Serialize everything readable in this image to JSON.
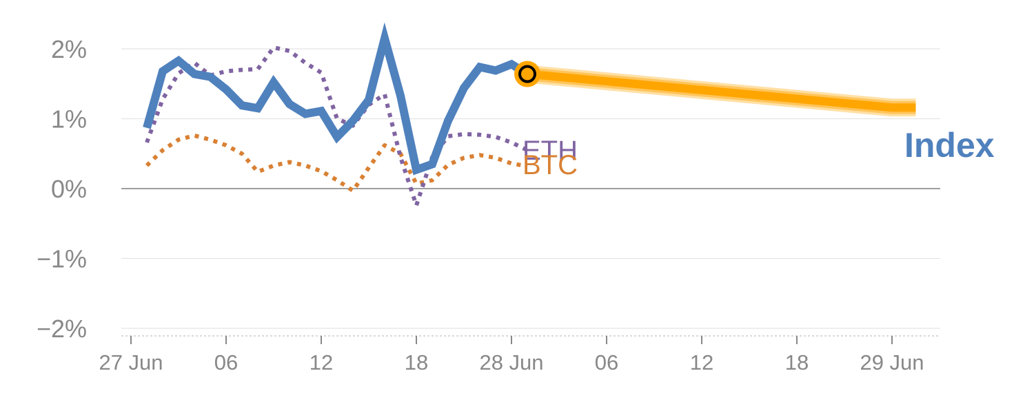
{
  "chart_data": {
    "type": "line",
    "title": "",
    "xlabel": "",
    "ylabel": "",
    "x_ticks": [
      "27 Jun",
      "06",
      "12",
      "18",
      "28 Jun",
      "06",
      "12",
      "18",
      "29 Jun"
    ],
    "y_ticks": [
      "2%",
      "1%",
      "0%",
      "−1%",
      "−2%"
    ],
    "ylim": [
      -2,
      2
    ],
    "xlim": [
      "2024-06-27T00:00",
      "2024-06-29T02:00"
    ],
    "grid": true,
    "series": [
      {
        "name": "Index",
        "color": "#4f81bd",
        "style": "solid",
        "x": [
          "2024-06-27T01:00",
          "2024-06-27T02:00",
          "2024-06-27T03:00",
          "2024-06-27T04:00",
          "2024-06-27T05:00",
          "2024-06-27T06:00",
          "2024-06-27T07:00",
          "2024-06-27T08:00",
          "2024-06-27T09:00",
          "2024-06-27T10:00",
          "2024-06-27T11:00",
          "2024-06-27T12:00",
          "2024-06-27T13:00",
          "2024-06-27T14:00",
          "2024-06-27T15:00",
          "2024-06-27T16:00",
          "2024-06-27T17:00",
          "2024-06-27T18:00",
          "2024-06-27T19:00",
          "2024-06-27T20:00",
          "2024-06-27T21:00",
          "2024-06-27T22:00",
          "2024-06-27T23:00",
          "2024-06-28T00:00",
          "2024-06-28T01:00"
        ],
        "values": [
          0.87,
          1.68,
          1.83,
          1.64,
          1.6,
          1.42,
          1.19,
          1.15,
          1.52,
          1.21,
          1.07,
          1.11,
          0.74,
          0.97,
          1.27,
          2.15,
          1.33,
          0.27,
          0.35,
          0.97,
          1.44,
          1.74,
          1.69,
          1.78,
          1.64
        ]
      },
      {
        "name": "ETH",
        "color": "#8064a2",
        "style": "dotted",
        "x": [
          "2024-06-27T01:00",
          "2024-06-27T02:00",
          "2024-06-27T03:00",
          "2024-06-27T04:00",
          "2024-06-27T05:00",
          "2024-06-27T06:00",
          "2024-06-27T07:00",
          "2024-06-27T08:00",
          "2024-06-27T09:00",
          "2024-06-27T10:00",
          "2024-06-27T11:00",
          "2024-06-27T12:00",
          "2024-06-27T13:00",
          "2024-06-27T14:00",
          "2024-06-27T15:00",
          "2024-06-27T16:00",
          "2024-06-27T17:00",
          "2024-06-27T18:00",
          "2024-06-27T19:00",
          "2024-06-27T20:00",
          "2024-06-27T21:00",
          "2024-06-27T22:00",
          "2024-06-27T23:00",
          "2024-06-28T00:00",
          "2024-06-28T01:00"
        ],
        "values": [
          0.66,
          1.28,
          1.65,
          1.8,
          1.62,
          1.68,
          1.7,
          1.71,
          2.02,
          1.97,
          1.8,
          1.66,
          1.0,
          0.9,
          1.2,
          1.35,
          0.45,
          -0.24,
          0.45,
          0.75,
          0.78,
          0.77,
          0.74,
          0.66,
          0.55
        ]
      },
      {
        "name": "BTC",
        "color": "#d98033",
        "style": "dotted",
        "x": [
          "2024-06-27T01:00",
          "2024-06-27T02:00",
          "2024-06-27T03:00",
          "2024-06-27T04:00",
          "2024-06-27T05:00",
          "2024-06-27T06:00",
          "2024-06-27T07:00",
          "2024-06-27T08:00",
          "2024-06-27T09:00",
          "2024-06-27T10:00",
          "2024-06-27T11:00",
          "2024-06-27T12:00",
          "2024-06-27T13:00",
          "2024-06-27T14:00",
          "2024-06-27T15:00",
          "2024-06-27T16:00",
          "2024-06-27T17:00",
          "2024-06-27T18:00",
          "2024-06-27T19:00",
          "2024-06-27T20:00",
          "2024-06-27T21:00",
          "2024-06-27T22:00",
          "2024-06-27T23:00",
          "2024-06-28T00:00",
          "2024-06-28T01:00"
        ],
        "values": [
          0.33,
          0.55,
          0.7,
          0.76,
          0.7,
          0.62,
          0.5,
          0.24,
          0.33,
          0.38,
          0.33,
          0.25,
          0.12,
          -0.03,
          0.3,
          0.62,
          0.5,
          0.07,
          0.12,
          0.34,
          0.44,
          0.48,
          0.44,
          0.36,
          0.32
        ]
      },
      {
        "name": "Index projection",
        "color": "#ffa500",
        "style": "band",
        "x": [
          "2024-06-28T01:00",
          "2024-06-29T00:00",
          "2024-06-29T01:30"
        ],
        "values": [
          1.64,
          1.16,
          1.16
        ]
      }
    ],
    "current_point": {
      "x": "2024-06-28T01:00",
      "value": 1.64
    }
  },
  "labels": {
    "index": "Index",
    "eth": "ETH",
    "btc": "BTC"
  }
}
